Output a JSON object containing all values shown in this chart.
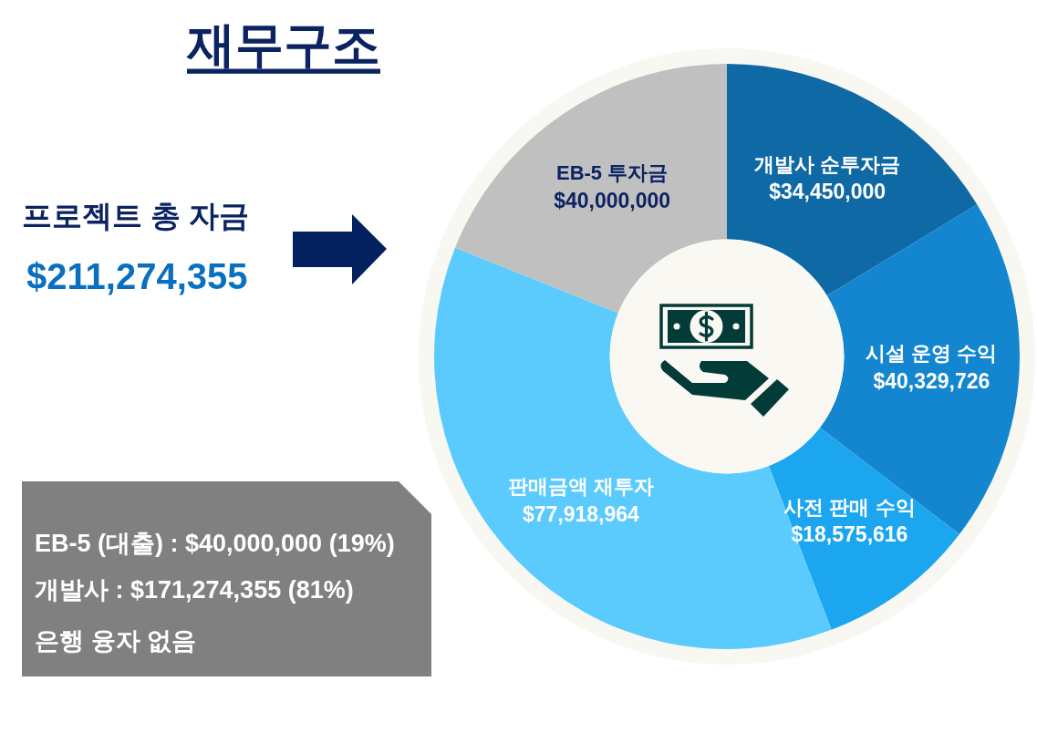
{
  "chart_data": {
    "type": "donut",
    "title": "재무구조",
    "categories": [
      "개발사 순투자금",
      "시설 운영 수익",
      "사전 판매 수익",
      "판매금액 재투자",
      "EB-5 투자금"
    ],
    "values": [
      34450000,
      40329726,
      18575616,
      77918964,
      40000000
    ],
    "colors": [
      "#0f69a5",
      "#1386cf",
      "#1ba6ef",
      "#5bcbfe",
      "#c0c0c0"
    ],
    "value_labels": [
      "$34,450,000",
      "$40,329,726",
      "$18,575,616",
      "$77,918,964",
      "$40,000,000"
    ],
    "annotations": [
      "프로젝트 총 자금",
      "$211,274,355",
      "EB-5 (대출) : $40,000,000 (19%)",
      "개발사 : $171,274,355 (81%)",
      "은행 융자 없음"
    ]
  }
}
